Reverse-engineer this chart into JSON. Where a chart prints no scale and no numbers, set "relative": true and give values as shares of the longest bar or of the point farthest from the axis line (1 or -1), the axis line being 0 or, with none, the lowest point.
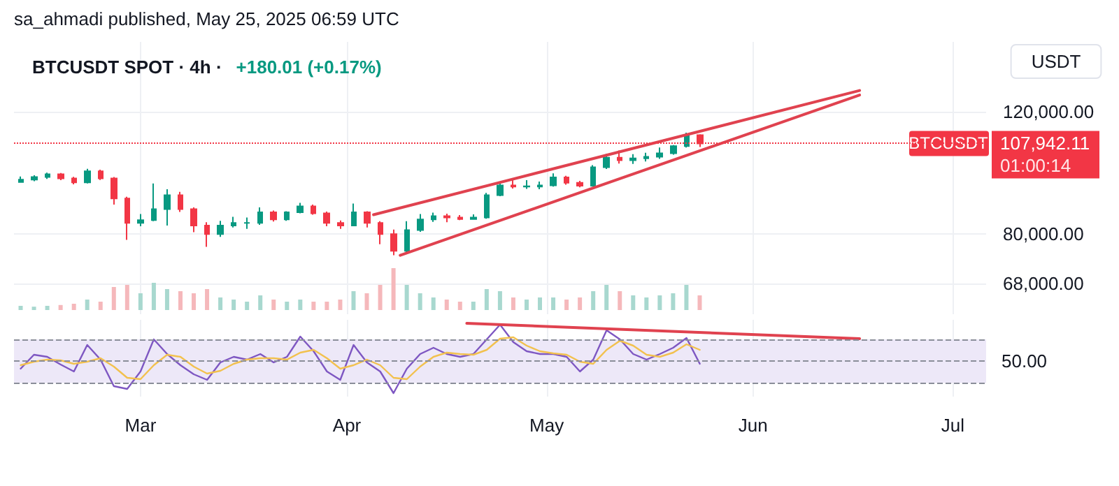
{
  "chart_data": [
    {
      "type": "candlestick",
      "title": "BTCUSDT SPOT · 4h ·",
      "subtitle": "+180.01 (+0.17%)",
      "ylabel": "USDT",
      "annotations": [
        "sa_ahmadi published, May 25, 2025 06:59 UTC",
        "01:00:14",
        {
          "text": "BTCUSDT",
          "y": 107942.11
        }
      ],
      "x": [
        "2025-02-11",
        "2025-02-13",
        "2025-02-15",
        "2025-02-17",
        "2025-02-19",
        "2025-02-21",
        "2025-02-23",
        "2025-02-25",
        "2025-02-27",
        "2025-03-01",
        "2025-03-03",
        "2025-03-05",
        "2025-03-07",
        "2025-03-09",
        "2025-03-11",
        "2025-03-13",
        "2025-03-15",
        "2025-03-17",
        "2025-03-19",
        "2025-03-21",
        "2025-03-23",
        "2025-03-25",
        "2025-03-27",
        "2025-03-29",
        "2025-03-31",
        "2025-04-02",
        "2025-04-04",
        "2025-04-06",
        "2025-04-08",
        "2025-04-10",
        "2025-04-12",
        "2025-04-14",
        "2025-04-16",
        "2025-04-18",
        "2025-04-20",
        "2025-04-22",
        "2025-04-24",
        "2025-04-26",
        "2025-04-28",
        "2025-04-30",
        "2025-05-02",
        "2025-05-04",
        "2025-05-06",
        "2025-05-08",
        "2025-05-10",
        "2025-05-12",
        "2025-05-14",
        "2025-05-16",
        "2025-05-18",
        "2025-05-20",
        "2025-05-22",
        "2025-05-24"
      ],
      "ohlc": [
        [
          95000,
          96800,
          94800,
          95800
        ],
        [
          95800,
          97200,
          95300,
          96600
        ],
        [
          96600,
          98000,
          96000,
          97500
        ],
        [
          97500,
          97900,
          95600,
          96200
        ],
        [
          96200,
          96700,
          94300,
          94900
        ],
        [
          94900,
          99300,
          94600,
          98500
        ],
        [
          98500,
          99000,
          95700,
          96200
        ],
        [
          96200,
          96600,
          88200,
          90000
        ],
        [
          90000,
          90500,
          78500,
          83000
        ],
        [
          83000,
          85500,
          82100,
          83800
        ],
        [
          83800,
          94600,
          83500,
          86900
        ],
        [
          86900,
          92800,
          82300,
          91000
        ],
        [
          91000,
          92000,
          86100,
          86900
        ],
        [
          86900,
          87400,
          80500,
          82300
        ],
        [
          82300,
          83200,
          76700,
          80000
        ],
        [
          80000,
          83600,
          79300,
          82300
        ],
        [
          82300,
          84700,
          81800,
          83000
        ],
        [
          83000,
          84500,
          81400,
          83000
        ],
        [
          83000,
          87400,
          82500,
          86000
        ],
        [
          86000,
          86500,
          83400,
          84000
        ],
        [
          84000,
          86300,
          83600,
          86000
        ],
        [
          86000,
          88700,
          85700,
          87700
        ],
        [
          87700,
          88200,
          85300,
          85700
        ],
        [
          85700,
          86200,
          82100,
          83000
        ],
        [
          83000,
          83700,
          81400,
          82300
        ],
        [
          82300,
          88500,
          82100,
          86000
        ],
        [
          86000,
          86300,
          81800,
          83000
        ],
        [
          83000,
          83500,
          77400,
          80000
        ],
        [
          80000,
          81200,
          74600,
          75700
        ],
        [
          75700,
          83500,
          75400,
          81100
        ],
        [
          81100,
          85500,
          80600,
          84000
        ],
        [
          84000,
          85900,
          83300,
          84900
        ],
        [
          84900,
          85600,
          83200,
          84500
        ],
        [
          84500,
          85200,
          83800,
          84100
        ],
        [
          84100,
          85400,
          83900,
          84500
        ],
        [
          84500,
          91700,
          84200,
          91000
        ],
        [
          91000,
          94700,
          90700,
          94000
        ],
        [
          94000,
          95800,
          93000,
          93600
        ],
        [
          93600,
          95600,
          92900,
          93700
        ],
        [
          93600,
          95200,
          92800,
          94000
        ],
        [
          94000,
          97800,
          93600,
          96500
        ],
        [
          96500,
          97000,
          94200,
          94800
        ],
        [
          94800,
          95400,
          93400,
          93900
        ],
        [
          93900,
          100500,
          93600,
          99800
        ],
        [
          99800,
          104300,
          99200,
          103000
        ],
        [
          103000,
          105500,
          101000,
          102100
        ],
        [
          102100,
          104200,
          100900,
          102800
        ],
        [
          102800,
          104700,
          101700,
          103300
        ],
        [
          103300,
          106500,
          102600,
          104500
        ],
        [
          104500,
          107400,
          104000,
          107000
        ],
        [
          107000,
          111900,
          106500,
          111000
        ],
        [
          111000,
          111300,
          106700,
          107942.11
        ]
      ],
      "colors": [
        "#089981",
        "#089981",
        "#089981",
        "#f23645",
        "#f23645",
        "#089981",
        "#f23645",
        "#f23645",
        "#f23645",
        "#089981",
        "#089981",
        "#089981",
        "#f23645",
        "#f23645",
        "#f23645",
        "#089981",
        "#089981",
        "#089981",
        "#089981",
        "#f23645",
        "#089981",
        "#089981",
        "#f23645",
        "#f23645",
        "#f23645",
        "#089981",
        "#f23645",
        "#f23645",
        "#f23645",
        "#089981",
        "#089981",
        "#089981",
        "#f23645",
        "#f23645",
        "#089981",
        "#089981",
        "#089981",
        "#f23645",
        "#089981",
        "#089981",
        "#089981",
        "#f23645",
        "#f23645",
        "#089981",
        "#089981",
        "#f23645",
        "#089981",
        "#089981",
        "#089981",
        "#089981",
        "#089981",
        "#f23645"
      ],
      "series": [
        {
          "type": "line",
          "color": "#e0424f",
          "x": [
            "2025-04-05",
            "2025-06-17"
          ],
          "values": [
            85300,
            128600
          ]
        },
        {
          "type": "line",
          "color": "#e0424f",
          "x": [
            "2025-04-09",
            "2025-06-17"
          ],
          "values": [
            74600,
            126700
          ]
        }
      ],
      "marker": "none",
      "xlim": [
        "2025-02-10",
        "2025-07-06"
      ],
      "xticks": [
        {
          "value": "2025-03-01",
          "label": null
        },
        {
          "value": "2025-04-01",
          "label": null
        },
        {
          "value": "2025-05-01",
          "label": null
        },
        {
          "value": "2025-06-01",
          "label": null
        },
        {
          "value": "2025-07-01",
          "label": null
        }
      ],
      "ylim": [
        61400,
        151000
      ],
      "log": true,
      "yticks": [
        {
          "value": 68000,
          "label": "68,000.00"
        },
        {
          "value": 80000,
          "label": "80,000.00"
        },
        {
          "value": 120000,
          "label": "120,000.00"
        }
      ],
      "ref_lines": [
        {
          "axis": "y",
          "value": 107942.11,
          "label": "107,942.11",
          "color": "#f23645",
          "line_style": "dotted"
        }
      ],
      "grid": true,
      "tick_labels": "y"
    },
    {
      "type": "bar",
      "relative": true,
      "tick_labels": false,
      "categories": [
        null,
        null,
        null,
        null,
        null,
        null,
        null,
        null,
        null,
        null,
        null,
        null,
        null,
        null,
        null,
        null,
        null,
        null,
        null,
        null,
        null,
        null,
        null,
        null,
        null,
        null,
        null,
        null,
        null,
        null,
        null,
        null,
        null,
        null,
        null,
        null,
        null,
        null,
        null,
        null,
        null,
        null,
        null,
        null,
        null,
        null,
        null,
        null,
        null,
        null,
        null,
        null
      ],
      "values": [
        0.1,
        0.08,
        0.1,
        0.12,
        0.15,
        0.25,
        0.2,
        0.55,
        0.6,
        0.4,
        0.65,
        0.5,
        0.45,
        0.4,
        0.5,
        0.3,
        0.25,
        0.2,
        0.35,
        0.25,
        0.2,
        0.25,
        0.2,
        0.2,
        0.25,
        0.45,
        0.4,
        0.6,
        1,
        0.6,
        0.4,
        0.3,
        0.25,
        0.2,
        0.2,
        0.5,
        0.45,
        0.3,
        0.25,
        0.3,
        0.3,
        0.25,
        0.3,
        0.45,
        0.6,
        0.45,
        0.35,
        0.3,
        0.35,
        0.4,
        0.6,
        0.35
      ],
      "colors": [
        "#a8d8cf",
        "#a8d8cf",
        "#a8d8cf",
        "#f5b8bb",
        "#f5b8bb",
        "#a8d8cf",
        "#f5b8bb",
        "#f5b8bb",
        "#f5b8bb",
        "#a8d8cf",
        "#a8d8cf",
        "#a8d8cf",
        "#f5b8bb",
        "#f5b8bb",
        "#f5b8bb",
        "#a8d8cf",
        "#a8d8cf",
        "#a8d8cf",
        "#a8d8cf",
        "#f5b8bb",
        "#a8d8cf",
        "#a8d8cf",
        "#f5b8bb",
        "#f5b8bb",
        "#f5b8bb",
        "#a8d8cf",
        "#f5b8bb",
        "#f5b8bb",
        "#f5b8bb",
        "#a8d8cf",
        "#a8d8cf",
        "#a8d8cf",
        "#f5b8bb",
        "#f5b8bb",
        "#a8d8cf",
        "#a8d8cf",
        "#a8d8cf",
        "#f5b8bb",
        "#a8d8cf",
        "#a8d8cf",
        "#a8d8cf",
        "#f5b8bb",
        "#f5b8bb",
        "#a8d8cf",
        "#a8d8cf",
        "#f5b8bb",
        "#a8d8cf",
        "#a8d8cf",
        "#a8d8cf",
        "#a8d8cf",
        "#a8d8cf",
        "#f5b8bb"
      ]
    },
    {
      "type": "line",
      "relative": true,
      "marker": "none",
      "grid": "x",
      "tick_labels": "x",
      "annotations": [
        "50.00"
      ],
      "x": [
        "2025-02-11",
        "2025-02-13",
        "2025-02-15",
        "2025-02-17",
        "2025-02-19",
        "2025-02-21",
        "2025-02-23",
        "2025-02-25",
        "2025-02-27",
        "2025-03-01",
        "2025-03-03",
        "2025-03-05",
        "2025-03-07",
        "2025-03-09",
        "2025-03-11",
        "2025-03-13",
        "2025-03-15",
        "2025-03-17",
        "2025-03-19",
        "2025-03-21",
        "2025-03-23",
        "2025-03-25",
        "2025-03-27",
        "2025-03-29",
        "2025-03-31",
        "2025-04-02",
        "2025-04-04",
        "2025-04-06",
        "2025-04-08",
        "2025-04-10",
        "2025-04-12",
        "2025-04-14",
        "2025-04-16",
        "2025-04-18",
        "2025-04-20",
        "2025-04-22",
        "2025-04-24",
        "2025-04-26",
        "2025-04-28",
        "2025-04-30",
        "2025-05-02",
        "2025-05-04",
        "2025-05-06",
        "2025-05-08",
        "2025-05-10",
        "2025-05-12",
        "2025-05-14",
        "2025-05-16",
        "2025-05-18",
        "2025-05-20",
        "2025-05-22",
        "2025-05-24"
      ],
      "series": [
        {
          "color": "#7e57c2",
          "values": [
            0.35,
            0.55,
            0.52,
            0.41,
            0.31,
            0.69,
            0.48,
            0.1,
            0.06,
            0.31,
            0.77,
            0.56,
            0.4,
            0.27,
            0.19,
            0.44,
            0.52,
            0.48,
            0.56,
            0.44,
            0.52,
            0.81,
            0.6,
            0.31,
            0.19,
            0.69,
            0.44,
            0.31,
            0,
            0.35,
            0.56,
            0.65,
            0.56,
            0.52,
            0.56,
            0.77,
            0.98,
            0.73,
            0.6,
            0.56,
            0.56,
            0.52,
            0.31,
            0.48,
            0.9,
            0.77,
            0.56,
            0.48,
            0.56,
            0.65,
            0.79,
            0.42
          ]
        },
        {
          "color": "#f2c14e",
          "values": [
            0.4,
            0.45,
            0.48,
            0.47,
            0.42,
            0.45,
            0.5,
            0.38,
            0.22,
            0.2,
            0.4,
            0.55,
            0.52,
            0.38,
            0.28,
            0.32,
            0.42,
            0.48,
            0.5,
            0.5,
            0.48,
            0.58,
            0.62,
            0.5,
            0.35,
            0.4,
            0.48,
            0.4,
            0.22,
            0.2,
            0.38,
            0.52,
            0.58,
            0.56,
            0.55,
            0.62,
            0.78,
            0.8,
            0.68,
            0.6,
            0.57,
            0.55,
            0.45,
            0.42,
            0.62,
            0.75,
            0.68,
            0.55,
            0.52,
            0.58,
            0.7,
            0.62
          ]
        },
        {
          "color": "#e0424f",
          "x": [
            "2025-04-19",
            "2025-06-17"
          ],
          "values": [
            1,
            0.78
          ]
        }
      ],
      "xlim": [
        "2025-02-10",
        "2025-07-06"
      ],
      "xticks": [
        {
          "value": "2025-03-01",
          "label": "Mar"
        },
        {
          "value": "2025-04-01",
          "label": "Apr"
        },
        {
          "value": "2025-05-01",
          "label": "May"
        },
        {
          "value": "2025-06-01",
          "label": "Jun"
        },
        {
          "value": "2025-07-01",
          "label": "Jul"
        }
      ],
      "bands": [
        {
          "axis": "y",
          "from": 0.146,
          "to": 0.771,
          "color": "#ede8f8"
        }
      ],
      "ref_lines": [
        {
          "axis": "y",
          "value": 0.771,
          "color": "#8a8e99",
          "line_style": "dashed"
        },
        {
          "axis": "y",
          "value": 0.458,
          "color": "#8a8e99",
          "line_style": "dashed"
        },
        {
          "axis": "y",
          "value": 0.146,
          "color": "#8a8e99",
          "line_style": "dashed"
        }
      ]
    }
  ]
}
